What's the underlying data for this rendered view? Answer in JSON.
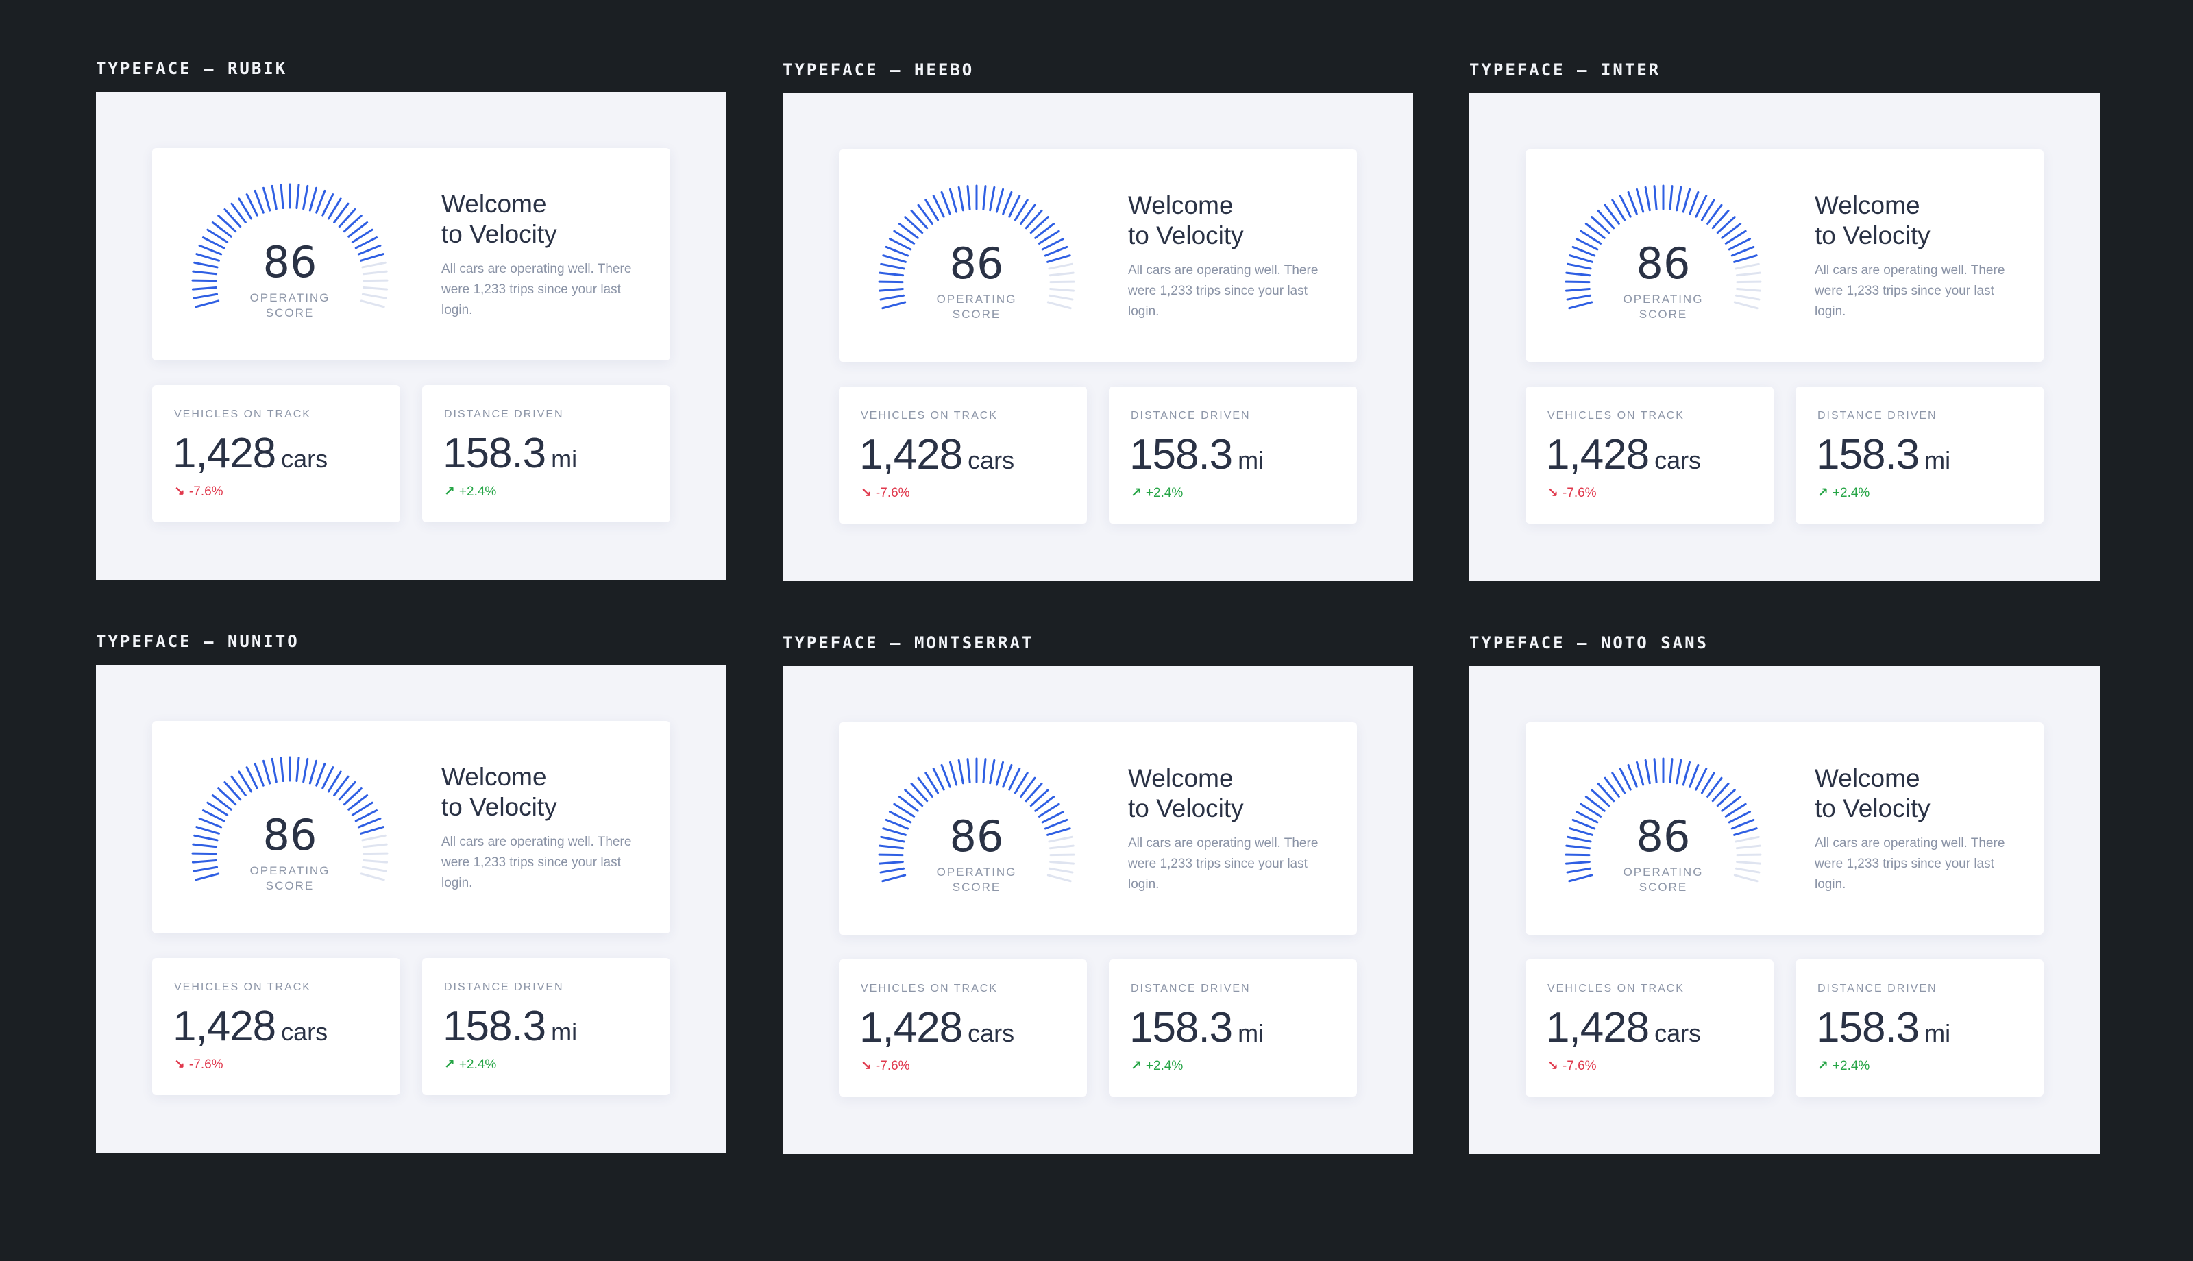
{
  "colors": {
    "background": "#1b1f23",
    "frame": "#f3f4f9",
    "card": "#ffffff",
    "gauge_active": "#2f5fe3",
    "gauge_inactive": "#dfe4f0",
    "negative": "#e0384c",
    "positive": "#26a546",
    "text_primary": "#2a3245",
    "text_secondary": "#8a93a6"
  },
  "panels": [
    {
      "title": "TYPEFACE — RUBIK",
      "score": {
        "value": "86",
        "label_line1": "OPERATING",
        "label_line2": "SCORE",
        "level": 0.86
      },
      "welcome": {
        "title_line1": "Welcome",
        "title_line2": "to Velocity",
        "text": "All cars are operating well. There were 1,233 trips since your last login."
      },
      "stats": [
        {
          "label": "VEHICLES ON TRACK",
          "value": "1,428",
          "unit": "cars",
          "change": "-7.6%",
          "direction": "down",
          "icon": "arrow-down-right-icon"
        },
        {
          "label": "DISTANCE DRIVEN",
          "value": "158.3",
          "unit": "mi",
          "change": "+2.4%",
          "direction": "up",
          "icon": "arrow-up-right-icon"
        }
      ]
    },
    {
      "title": "TYPEFACE — HEEBO",
      "score": {
        "value": "86",
        "label_line1": "OPERATING",
        "label_line2": "SCORE",
        "level": 0.86
      },
      "welcome": {
        "title_line1": "Welcome",
        "title_line2": "to Velocity",
        "text": "All cars are operating well. There were 1,233 trips since your last login."
      },
      "stats": [
        {
          "label": "VEHICLES ON TRACK",
          "value": "1,428",
          "unit": "cars",
          "change": "-7.6%",
          "direction": "down",
          "icon": "arrow-down-right-icon"
        },
        {
          "label": "DISTANCE DRIVEN",
          "value": "158.3",
          "unit": "mi",
          "change": "+2.4%",
          "direction": "up",
          "icon": "arrow-up-right-icon"
        }
      ]
    },
    {
      "title": "TYPEFACE — INTER",
      "score": {
        "value": "86",
        "label_line1": "OPERATING",
        "label_line2": "SCORE",
        "level": 0.86
      },
      "welcome": {
        "title_line1": "Welcome",
        "title_line2": "to Velocity",
        "text": "All cars are operating well. There were 1,233 trips since your last login."
      },
      "stats": [
        {
          "label": "VEHICLES ON TRACK",
          "value": "1,428",
          "unit": "cars",
          "change": "-7.6%",
          "direction": "down",
          "icon": "arrow-down-right-icon"
        },
        {
          "label": "DISTANCE DRIVEN",
          "value": "158.3",
          "unit": "mi",
          "change": "+2.4%",
          "direction": "up",
          "icon": "arrow-up-right-icon"
        }
      ]
    },
    {
      "title": "TYPEFACE — NUNITO",
      "score": {
        "value": "86",
        "label_line1": "OPERATING",
        "label_line2": "SCORE",
        "level": 0.86
      },
      "welcome": {
        "title_line1": "Welcome",
        "title_line2": "to Velocity",
        "text": "All cars are operating well. There were 1,233 trips since your last login."
      },
      "stats": [
        {
          "label": "VEHICLES ON TRACK",
          "value": "1,428",
          "unit": "cars",
          "change": "-7.6%",
          "direction": "down",
          "icon": "arrow-down-right-icon"
        },
        {
          "label": "DISTANCE DRIVEN",
          "value": "158.3",
          "unit": "mi",
          "change": "+2.4%",
          "direction": "up",
          "icon": "arrow-up-right-icon"
        }
      ]
    },
    {
      "title": "TYPEFACE — MONTSERRAT",
      "score": {
        "value": "86",
        "label_line1": "OPERATING",
        "label_line2": "SCORE",
        "level": 0.86
      },
      "welcome": {
        "title_line1": "Welcome",
        "title_line2": "to Velocity",
        "text": "All cars are operating well. There were 1,233 trips since your last login."
      },
      "stats": [
        {
          "label": "VEHICLES ON TRACK",
          "value": "1,428",
          "unit": "cars",
          "change": "-7.6%",
          "direction": "down",
          "icon": "arrow-down-right-icon"
        },
        {
          "label": "DISTANCE DRIVEN",
          "value": "158.3",
          "unit": "mi",
          "change": "+2.4%",
          "direction": "up",
          "icon": "arrow-up-right-icon"
        }
      ]
    },
    {
      "title": "TYPEFACE — NOTO SANS",
      "score": {
        "value": "86",
        "label_line1": "OPERATING",
        "label_line2": "SCORE",
        "level": 0.86
      },
      "welcome": {
        "title_line1": "Welcome",
        "title_line2": "to Velocity",
        "text": "All cars are operating well. There were 1,233 trips since your last login."
      },
      "stats": [
        {
          "label": "VEHICLES ON TRACK",
          "value": "1,428",
          "unit": "cars",
          "change": "-7.6%",
          "direction": "down",
          "icon": "arrow-down-right-icon"
        },
        {
          "label": "DISTANCE DRIVEN",
          "value": "158.3",
          "unit": "mi",
          "change": "+2.4%",
          "direction": "up",
          "icon": "arrow-up-right-icon"
        }
      ]
    }
  ]
}
